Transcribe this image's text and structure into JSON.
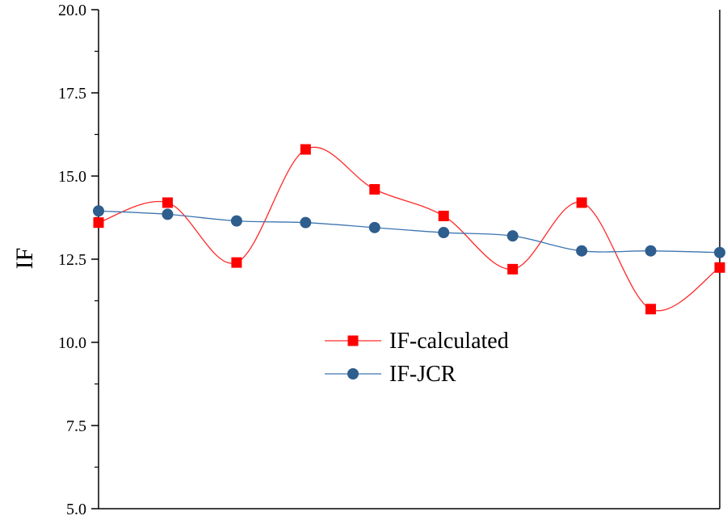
{
  "chart_data": {
    "type": "line",
    "ylabel": "IF",
    "xlabel": "",
    "ylim": [
      5.0,
      20.0
    ],
    "y_ticks": [
      "5.0",
      "7.5",
      "10.0",
      "12.5",
      "15.0",
      "17.5",
      "20.0"
    ],
    "x": [
      1,
      2,
      3,
      4,
      5,
      6,
      7,
      8,
      9,
      10
    ],
    "xlim": [
      1,
      10
    ],
    "grid": false,
    "legend_position": "center",
    "series": [
      {
        "name": "IF-calculated",
        "marker": "square",
        "color": "#ff0000",
        "line_color": "#ff2a2a",
        "values": [
          13.6,
          14.2,
          12.4,
          15.8,
          14.6,
          13.8,
          12.2,
          14.2,
          11.0,
          12.25
        ]
      },
      {
        "name": "IF-JCR",
        "marker": "circle",
        "color": "#2e5e8e",
        "line_color": "#3d75b0",
        "values": [
          13.95,
          13.85,
          13.65,
          13.6,
          13.45,
          13.3,
          13.2,
          12.75,
          12.75,
          12.7
        ]
      }
    ]
  }
}
